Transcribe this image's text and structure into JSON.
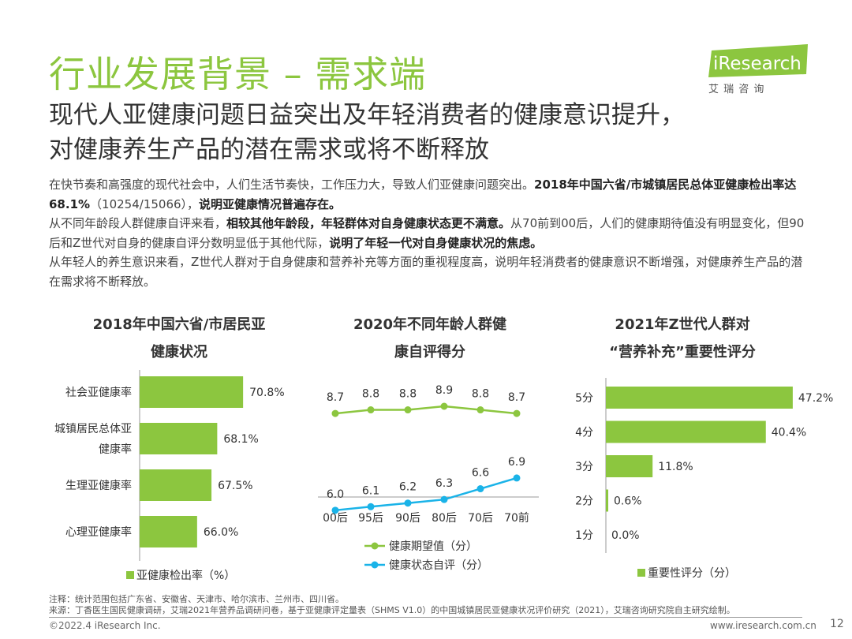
{
  "header": {
    "title": "行业发展背景 – 需求端",
    "subtitle_line1": "现代人亚健康问题日益突出及年轻消费者的健康意识提升，",
    "subtitle_line2": "对健康养生产品的潜在需求或将不断释放"
  },
  "logo": {
    "brand": "iResearch",
    "cn": "艾 瑞 咨 询",
    "color": "#8cc63f"
  },
  "paragraphs": {
    "p1_a": "在快节奏和高强度的现代社会中，人们生活节奏快，工作压力大，导致人们亚健康问题突出。",
    "p1_b": "2018年中国六省/市城镇居民总体亚健康检出率达68.1%",
    "p1_c": "（10254/15066），",
    "p1_d": "说明亚健康情况普遍存在。",
    "p2_a": "从不同年龄段人群健康自评来看，",
    "p2_b": "相较其他年龄段，年轻群体对自身健康状态更不满意。",
    "p2_c": "从70前到00后，人们的健康期待值没有明显变化，但90后和Z世代对自身的健康自评分数明显低于其他代际，",
    "p2_d": "说明了年轻一代对自身健康状况的焦虑。",
    "p3": "从年轻人的养生意识来看，Z世代人群对于自身健康和营养补充等方面的重视程度高，说明年轻消费者的健康意识不断增强，对健康养生产品的潜在需求将不断释放。"
  },
  "colors": {
    "green": "#8cc63f",
    "blue": "#1ab3e8",
    "text": "#333333"
  },
  "chart_data": [
    {
      "type": "bar",
      "orientation": "horizontal",
      "title_line1": "2018年中国六省/市居民亚",
      "title_line2": "健康状况",
      "categories": [
        "社会亚健康率",
        "城镇居民总体亚健康率",
        "生理亚健康率",
        "心理亚健康率"
      ],
      "category_lines": [
        [
          "社会亚健康率"
        ],
        [
          "城镇居民总体亚",
          "健康率"
        ],
        [
          "生理亚健康率"
        ],
        [
          "心理亚健康率"
        ]
      ],
      "values": [
        70.8,
        68.1,
        67.5,
        66.0
      ],
      "value_labels": [
        "70.8%",
        "68.1%",
        "67.5%",
        "66.0%"
      ],
      "axis_min": 60,
      "axis_max": 74,
      "legend": "亚健康检出率（%）"
    },
    {
      "type": "line",
      "title_line1": "2020年不同年龄人群健",
      "title_line2": "康自评得分",
      "categories": [
        "00后",
        "95后",
        "90后",
        "80后",
        "70后",
        "70前"
      ],
      "ylim": [
        4.5,
        10
      ],
      "series": [
        {
          "name": "健康期望值（分）",
          "color": "#8cc63f",
          "values": [
            8.7,
            8.8,
            8.8,
            8.9,
            8.8,
            8.7
          ],
          "labels": [
            "8.7",
            "8.8",
            "8.8",
            "8.9",
            "8.8",
            "8.7"
          ]
        },
        {
          "name": "健康状态自评（分）",
          "color": "#1ab3e8",
          "values": [
            6.0,
            6.1,
            6.2,
            6.3,
            6.6,
            6.9
          ],
          "labels": [
            "6.0",
            "6.1",
            "6.2",
            "6.3",
            "6.6",
            "6.9"
          ]
        }
      ]
    },
    {
      "type": "bar",
      "orientation": "horizontal",
      "title_line1": "2021年Z世代人群对",
      "title_line2": "“营养补充”重要性评分",
      "categories": [
        "5分",
        "4分",
        "3分",
        "2分",
        "1分"
      ],
      "values": [
        47.2,
        40.4,
        11.8,
        0.6,
        0.0
      ],
      "value_labels": [
        "47.2%",
        "40.4%",
        "11.8%",
        "0.6%",
        "0.0%"
      ],
      "axis_max": 53,
      "legend": "重要性评分（分）"
    }
  ],
  "footer": {
    "note": "注释：统计范围包括广东省、安徽省、天津市、哈尔滨市、兰州市、四川省。",
    "source": "来源：丁香医生国民健康调研，艾瑞2021年营养品调研问卷，基于亚健康评定量表（SHMS V1.0）的中国城镇居民亚健康状况评价研究（2021），艾瑞咨询研究院自主研究绘制。",
    "copyright": "©2022.4 iResearch Inc.",
    "website": "www.iresearch.com.cn",
    "page": "12"
  }
}
